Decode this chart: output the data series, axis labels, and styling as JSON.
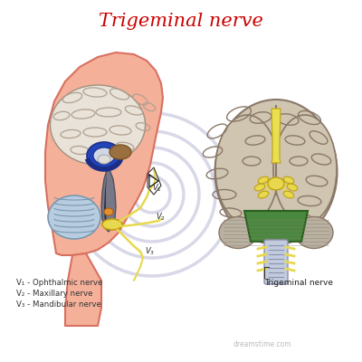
{
  "title": "Trigeminal nerve",
  "title_color": "#cc0000",
  "title_fontsize": 15,
  "bg_color": "#ffffff",
  "legend_lines": [
    "V₁ - Ophthalmic nerve",
    "V₂ - Maxillary nerve",
    "V₃ - Mandibular nerve"
  ],
  "trigeminal_label": "Trigeminal nerve",
  "skin_color": "#f5b09a",
  "skin_outline": "#d87060",
  "brain_fill": "#ddd5c5",
  "brain_outline": "#a09080",
  "gyri_color": "#b0a090",
  "nerve_yellow": "#e8d84d",
  "nerve_dark": "#c0a010",
  "blue_dark": "#1a2e88",
  "blue_mid": "#2244bb",
  "blue_light": "#4466cc",
  "thalamus_color": "#9a7040",
  "brainstem_color": "#777788",
  "cereb_color": "#b8cce0",
  "cereb_outline": "#7898b0",
  "pons_color": "#d4882a",
  "green_color": "#4a8840",
  "green_outline": "#2a6020",
  "spinal_color": "#c0ccdd",
  "spinal_outline": "#9090b0",
  "swirl_color": "#d8d8e8",
  "right_brain_fill": "#d0c5b0",
  "right_brain_outline": "#8a7868"
}
